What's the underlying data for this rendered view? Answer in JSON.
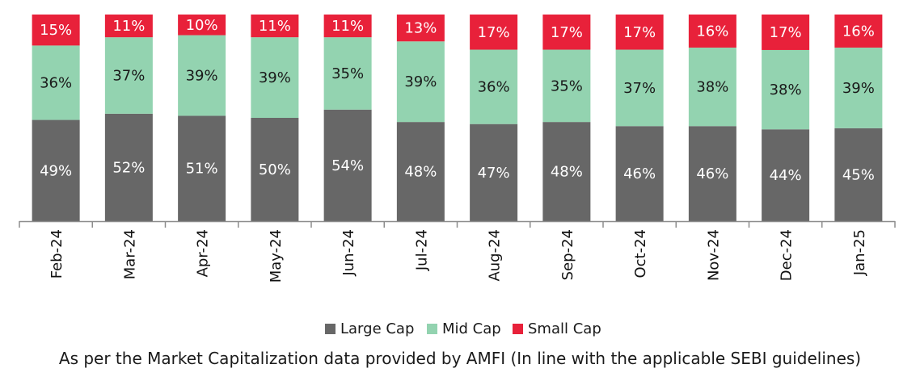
{
  "footnote": "As per the Market Capitalization data provided by AMFI (In line with the applicable SEBI guidelines)",
  "colors": {
    "large_cap": "#676767",
    "mid_cap": "#93d3b0",
    "small_cap": "#e8213a",
    "axis": "#8c8c8c",
    "label_light": "#ffffff",
    "label_dark": "#1a1a1a"
  },
  "chart_data": {
    "type": "bar",
    "stacked": true,
    "categories": [
      "Feb-24",
      "Mar-24",
      "Apr-24",
      "May-24",
      "Jun-24",
      "Jul-24",
      "Aug-24",
      "Sep-24",
      "Oct-24",
      "Nov-24",
      "Dec-24",
      "Jan-25"
    ],
    "series": [
      {
        "name": "Large Cap",
        "values": [
          49,
          52,
          51,
          50,
          54,
          48,
          47,
          48,
          46,
          46,
          44,
          45
        ],
        "color": "#676767"
      },
      {
        "name": "Mid Cap",
        "values": [
          36,
          37,
          39,
          39,
          35,
          39,
          36,
          35,
          37,
          38,
          38,
          39
        ],
        "color": "#93d3b0"
      },
      {
        "name": "Small Cap",
        "values": [
          15,
          11,
          10,
          11,
          11,
          13,
          17,
          17,
          17,
          16,
          17,
          16
        ],
        "color": "#e8213a"
      }
    ],
    "value_suffix": "%",
    "ylim": [
      0,
      100
    ],
    "legend_position": "bottom",
    "grid": false,
    "title": "",
    "xlabel": "",
    "ylabel": ""
  }
}
